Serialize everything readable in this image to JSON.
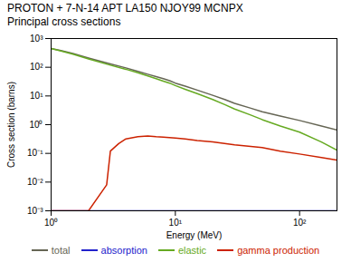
{
  "chart_data": {
    "type": "line",
    "title": "PROTON + 7-N-14 APT LA150 NJOY99 MCNPX",
    "subtitle": "Principal cross sections",
    "xlabel": "Energy (MeV)",
    "ylabel": "Cross section (barns)",
    "log": true,
    "grid": false,
    "legend": "bottom",
    "xlim": [
      1.0,
      200.0
    ],
    "xticks": [
      {
        "value": 1,
        "label": "10⁰"
      },
      {
        "value": 10,
        "label": "10¹"
      },
      {
        "value": 100,
        "label": "10²"
      }
    ],
    "ylim": [
      0.001,
      1000
    ],
    "yticks": [
      {
        "value": 0.001,
        "label": "10⁻³"
      },
      {
        "value": 0.01,
        "label": "10⁻²"
      },
      {
        "value": 0.1,
        "label": "10⁻¹"
      },
      {
        "value": 1,
        "label": "10⁰"
      },
      {
        "value": 10,
        "label": "10¹"
      },
      {
        "value": 100,
        "label": "10²"
      },
      {
        "value": 1000,
        "label": "10³"
      }
    ],
    "series": [
      {
        "name": "total",
        "color": "#666655",
        "x": [
          1.0,
          1.2,
          1.5,
          2.0,
          3.0,
          4.0,
          5.0,
          6.0,
          7.0,
          8.0,
          9.0,
          10.0,
          12.0,
          15.0,
          20.0,
          25.0,
          30.0,
          40.0,
          50.0,
          70.0,
          100.0,
          150.0,
          200.0
        ],
        "values": [
          450,
          380,
          300,
          210,
          130,
          95,
          72,
          57,
          47,
          40,
          34,
          28,
          22,
          16,
          10.5,
          7.5,
          5.5,
          3.8,
          2.8,
          2.0,
          1.4,
          0.9,
          0.65
        ]
      },
      {
        "name": "absorption",
        "color": "#2222cc",
        "x": [
          1.0,
          200.0
        ],
        "values": [
          0.001,
          0.001
        ]
      },
      {
        "name": "elastic",
        "color": "#66aa22",
        "x": [
          1.0,
          1.2,
          1.5,
          2.0,
          3.0,
          4.0,
          5.0,
          6.0,
          7.0,
          8.0,
          9.0,
          10.0,
          12.0,
          15.0,
          20.0,
          25.0,
          30.0,
          40.0,
          50.0,
          70.0,
          100.0,
          150.0,
          200.0
        ],
        "values": [
          450,
          370,
          285,
          195,
          118,
          85,
          64,
          50,
          40,
          33,
          28,
          23,
          17,
          12,
          7.5,
          5.0,
          3.5,
          2.2,
          1.5,
          0.9,
          0.55,
          0.25,
          0.13
        ]
      },
      {
        "name": "gamma production",
        "color": "#cc2200",
        "x": [
          1.0,
          2.0,
          2.8,
          3.0,
          3.5,
          4.0,
          5.0,
          6.0,
          7.0,
          8.0,
          10.0,
          12.0,
          15.0,
          20.0,
          30.0,
          50.0,
          70.0,
          100.0,
          150.0,
          200.0
        ],
        "values": [
          0.001,
          0.001,
          0.008,
          0.12,
          0.22,
          0.32,
          0.38,
          0.4,
          0.38,
          0.37,
          0.34,
          0.32,
          0.28,
          0.25,
          0.2,
          0.16,
          0.12,
          0.095,
          0.072,
          0.058
        ]
      }
    ]
  }
}
